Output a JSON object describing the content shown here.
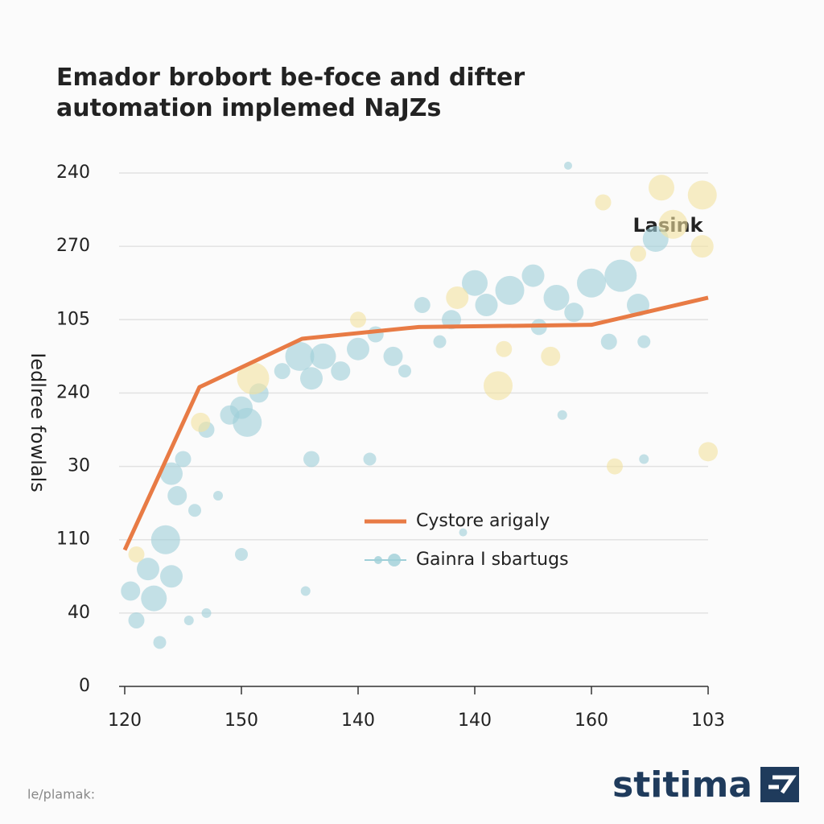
{
  "chart_data": {
    "type": "line",
    "title": "Emador brobort be-foce and difter automation implemed NaJZs",
    "y_label": "Iedlree fowlals",
    "annotation": "Lasink",
    "footer": "le/plamak:",
    "logo": "stitima",
    "xlim": [
      0,
      5
    ],
    "ylim": [
      0,
      7
    ],
    "xticks": [
      {
        "value": 0,
        "label": "120"
      },
      {
        "value": 1,
        "label": "150"
      },
      {
        "value": 2,
        "label": "140"
      },
      {
        "value": 3,
        "label": "140"
      },
      {
        "value": 4,
        "label": "160"
      },
      {
        "value": 5,
        "label": "103"
      }
    ],
    "yticks": [
      0,
      {
        "value": 1,
        "label": "40"
      },
      {
        "value": 2,
        "label": "110"
      },
      {
        "value": 3,
        "label": "30"
      },
      {
        "value": 4,
        "label": "240"
      },
      {
        "value": 5,
        "label": "105"
      },
      {
        "value": 6,
        "label": "270"
      },
      {
        "value": 7,
        "label": "240"
      }
    ],
    "grid": true,
    "series": [
      {
        "type": "scatter",
        "color": "#9fcfd8",
        "x": [
          0.05,
          0.1,
          0.2,
          0.25,
          0.35,
          0.4,
          0.3,
          0.45,
          0.5,
          0.4,
          0.6,
          0.7,
          0.8,
          0.9,
          1.0,
          1.05,
          1.15,
          1.35,
          1.5,
          1.6,
          1.7,
          1.85,
          2.0,
          2.15,
          2.3,
          2.4,
          2.55,
          2.7,
          2.8,
          3.0,
          3.1,
          3.3,
          3.5,
          3.55,
          3.7,
          3.85,
          4.0,
          4.15,
          4.25,
          4.4,
          4.55,
          4.45,
          0.55,
          1.6,
          2.1,
          1.55,
          0.7,
          3.75,
          4.45,
          3.8,
          2.9,
          1.0
        ],
        "values": [
          1.3,
          0.9,
          1.6,
          1.2,
          2.0,
          1.5,
          0.6,
          2.6,
          3.1,
          2.9,
          2.4,
          3.5,
          2.6,
          3.7,
          3.8,
          3.6,
          4.0,
          4.3,
          4.5,
          4.2,
          4.5,
          4.3,
          4.6,
          4.8,
          4.5,
          4.3,
          5.2,
          4.7,
          5.0,
          5.5,
          5.2,
          5.4,
          5.6,
          4.9,
          5.3,
          5.1,
          5.5,
          4.7,
          5.6,
          5.2,
          6.1,
          4.7,
          0.9,
          3.1,
          3.1,
          1.3,
          1.0,
          3.7,
          3.1,
          7.1,
          2.1,
          1.8
        ],
        "sizes": [
          12,
          10,
          14,
          16,
          18,
          14,
          8,
          12,
          10,
          14,
          8,
          10,
          6,
          12,
          14,
          18,
          12,
          10,
          18,
          14,
          16,
          12,
          14,
          10,
          12,
          8,
          10,
          8,
          12,
          16,
          14,
          18,
          14,
          10,
          16,
          12,
          18,
          10,
          20,
          14,
          16,
          8,
          6,
          10,
          8,
          6,
          6,
          6,
          6,
          5,
          5,
          8
        ]
      },
      {
        "type": "scatter",
        "color": "#f3e3a0",
        "x": [
          0.1,
          0.65,
          1.1,
          2.0,
          2.85,
          3.2,
          3.25,
          3.65,
          4.1,
          4.6,
          4.7,
          4.95,
          5.0,
          4.2,
          4.95,
          4.4
        ],
        "values": [
          1.8,
          3.6,
          4.2,
          5.0,
          5.3,
          4.1,
          4.6,
          4.5,
          6.6,
          6.8,
          6.3,
          6.0,
          3.2,
          3.0,
          6.7,
          5.9
        ],
        "sizes": [
          10,
          12,
          20,
          10,
          14,
          18,
          10,
          12,
          10,
          16,
          18,
          14,
          12,
          10,
          18,
          10
        ]
      },
      {
        "type": "line",
        "name": "Cystore arigaly",
        "color": "#e87b45",
        "x": [
          0,
          0.64,
          1.52,
          2.52,
          4.0,
          5.0
        ],
        "values": [
          1.86,
          4.08,
          4.74,
          4.9,
          4.93,
          5.3
        ]
      },
      {
        "type": "legend-only",
        "name": "Gainra I sbartugs",
        "color": "#9fcfd8"
      }
    ]
  }
}
